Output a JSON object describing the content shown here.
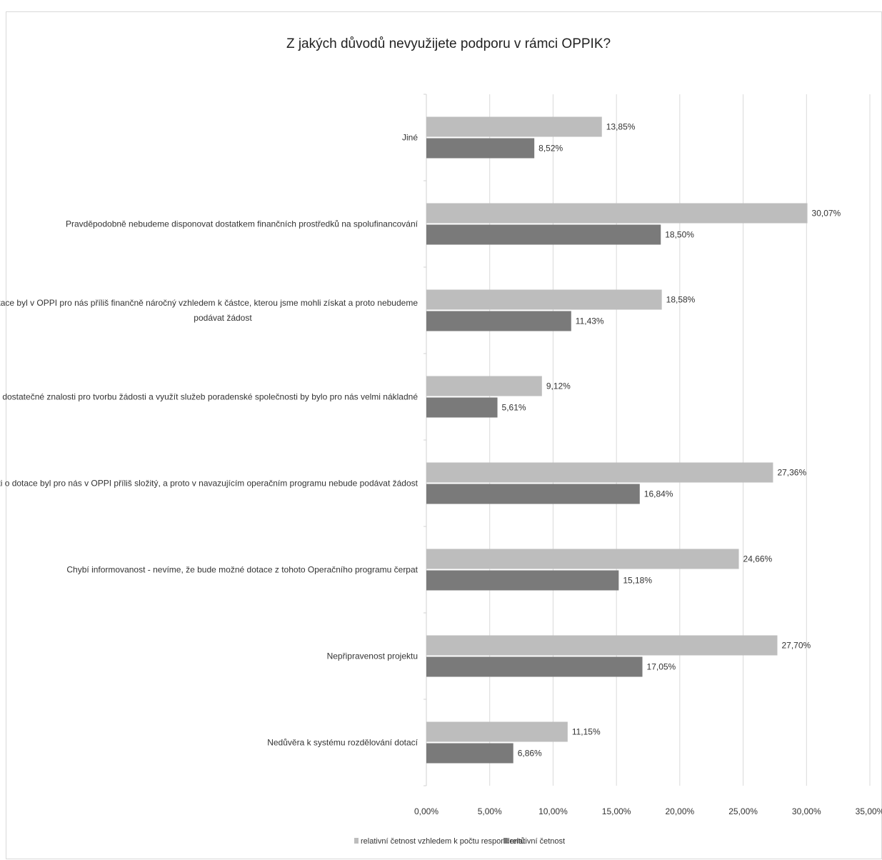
{
  "chart_data": {
    "type": "bar",
    "orientation": "horizontal",
    "title": "Z jakých důvodů nevyužijete podporu v rámci OPPIK?",
    "categories": [
      "Jiné",
      "Pravděpodobně nebudeme disponovat dostatkem finančních prostředků na spolufinancování",
      "Celý proces žádosti o dotace byl v OPPI pro nás příliš finančně náročný vzhledem k částce, kterou jsme mohli získat a proto nebudeme podávat žádost",
      "Nemáme dostatečné znalosti pro tvorbu žádosti a využít služeb poradenské společnosti by bylo pro nás velmi nákladné",
      "Celý proces žádosti o dotace byl pro nás v OPPI příliš složitý, a proto v navazujícím operačním programu nebude podávat žádost",
      "Chybí informovanost - nevíme, že bude možné dotace z tohoto Operačního programu čerpat",
      "Nepřipravenost projektu",
      "Nedůvěra k systému rozdělování dotací"
    ],
    "category_lines": [
      [
        "Jiné"
      ],
      [
        "Pravděpodobně nebudeme disponovat dostatkem finančních prostředků na spolufinancování"
      ],
      [
        "Celý proces žádosti o dotace byl v OPPI pro nás příliš finančně náročný vzhledem k částce, kterou jsme mohli získat a proto nebudeme",
        "podávat žádost"
      ],
      [
        "Nemáme dostatečné znalosti pro tvorbu žádosti a využít služeb poradenské společnosti by bylo pro nás velmi nákladné"
      ],
      [
        "Celý proces žádosti o dotace byl pro nás v OPPI příliš složitý, a proto v navazujícím operačním programu nebude podávat žádost"
      ],
      [
        "Chybí informovanost - nevíme, že bude možné dotace z tohoto Operačního programu čerpat"
      ],
      [
        "Nepřipravenost projektu"
      ],
      [
        "Nedůvěra k systému rozdělování dotací"
      ]
    ],
    "series": [
      {
        "name": "relativní četnost vzhledem k počtu respondentů",
        "color": "#bdbdbd",
        "values": [
          13.85,
          30.07,
          18.58,
          9.12,
          27.36,
          24.66,
          27.7,
          11.15
        ],
        "labels": [
          "13,85%",
          "30,07%",
          "18,58%",
          "9,12%",
          "27,36%",
          "24,66%",
          "27,70%",
          "11,15%"
        ]
      },
      {
        "name": "relativní četnost",
        "color": "#7a7a7a",
        "values": [
          8.52,
          18.5,
          11.43,
          5.61,
          16.84,
          15.18,
          17.05,
          6.86
        ],
        "labels": [
          "8,52%",
          "18,50%",
          "11,43%",
          "5,61%",
          "16,84%",
          "15,18%",
          "17,05%",
          "6,86%"
        ]
      }
    ],
    "x_ticks": [
      0,
      5,
      10,
      15,
      20,
      25,
      30,
      35
    ],
    "x_tick_labels": [
      "0,00%",
      "5,00%",
      "10,00%",
      "15,00%",
      "20,00%",
      "25,00%",
      "30,00%",
      "35,00%"
    ],
    "xlim": [
      0,
      35
    ],
    "grid": "vertical",
    "legend_position": "bottom",
    "xlabel": "",
    "ylabel": ""
  }
}
